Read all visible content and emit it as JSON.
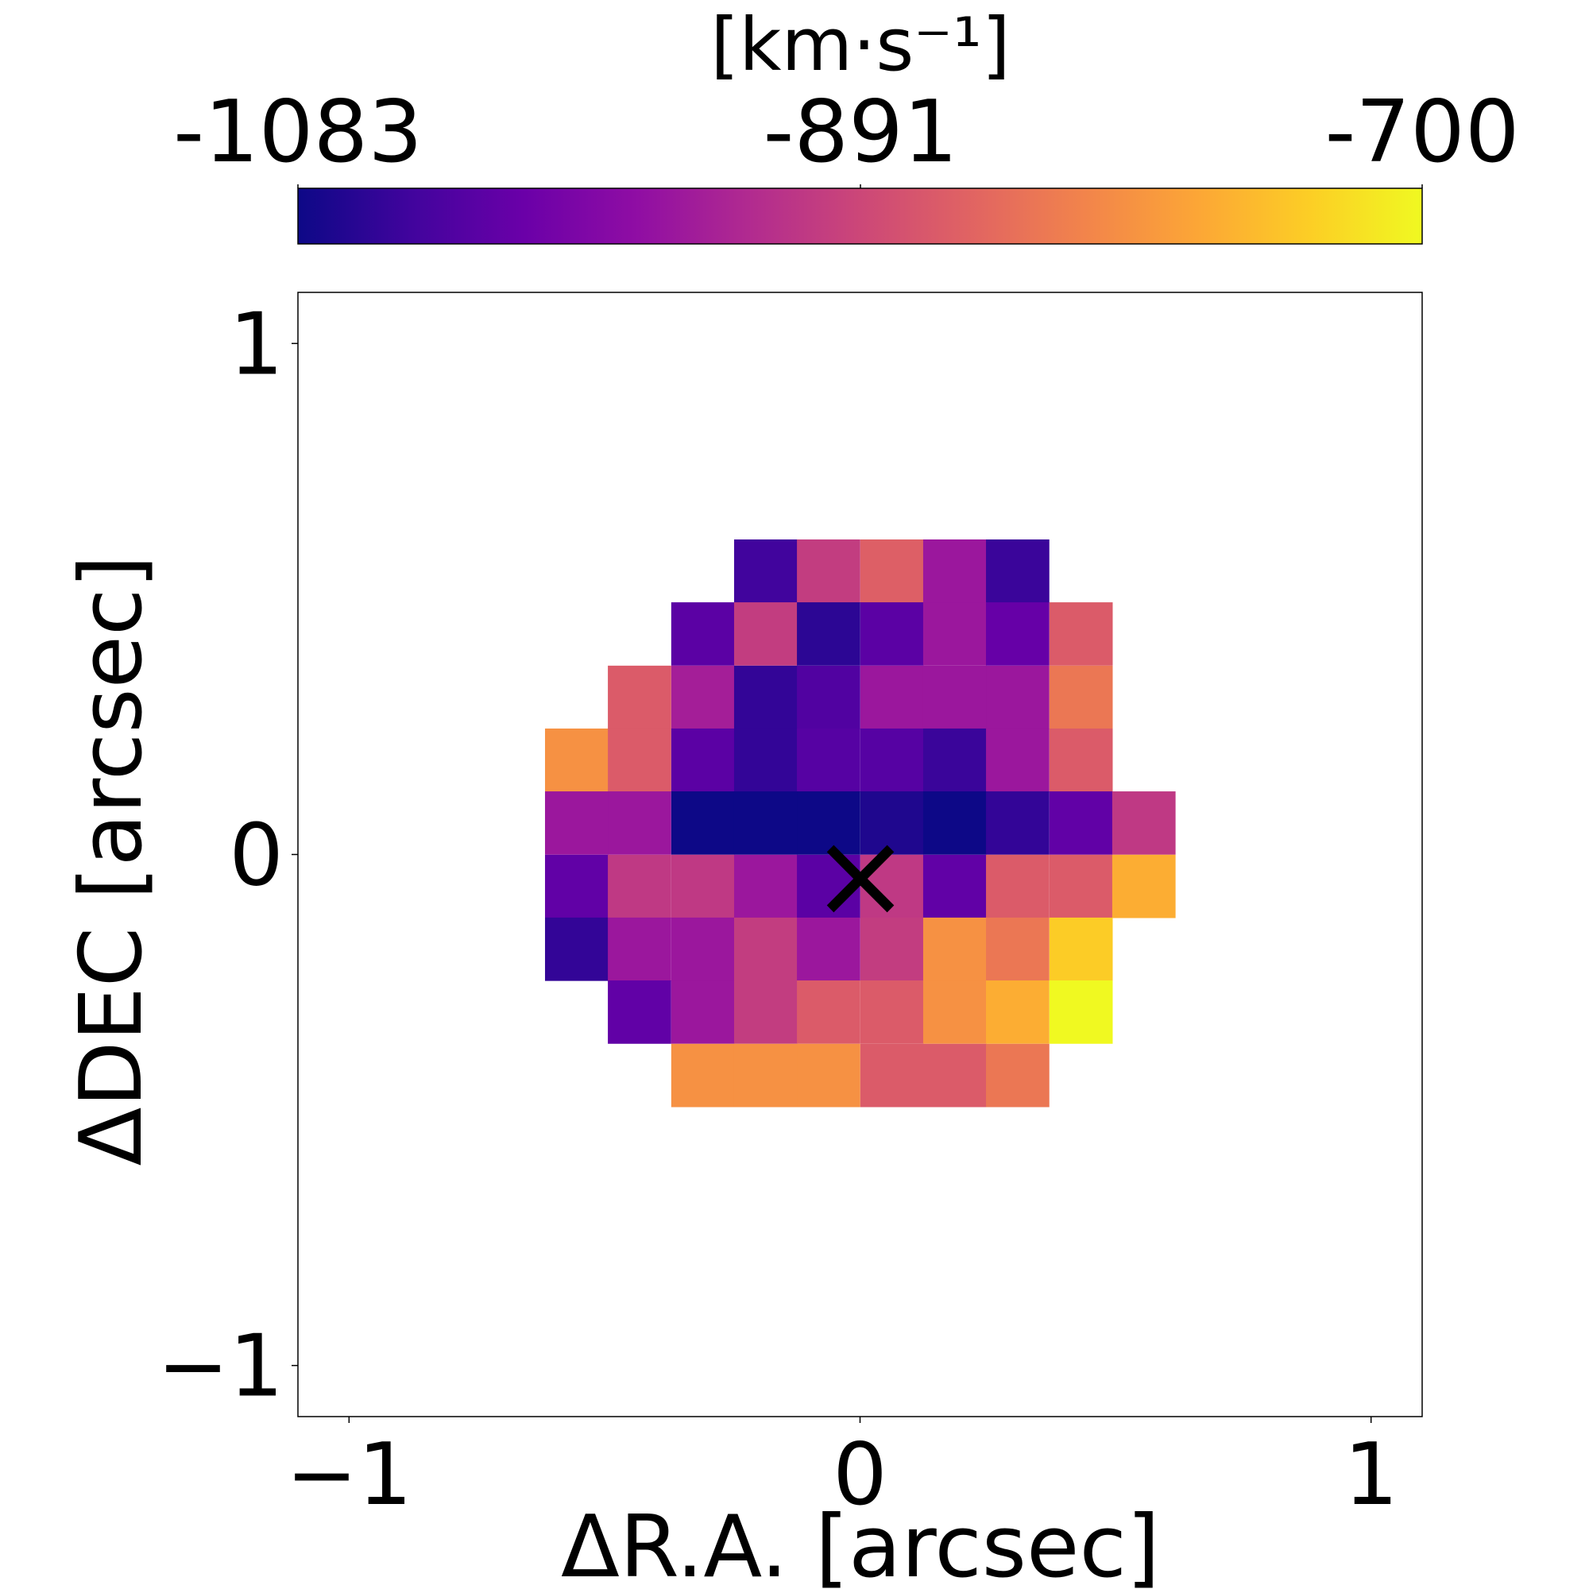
{
  "chart_data": {
    "type": "heatmap",
    "title": "",
    "xlabel": "ΔR.A. [arcsec]",
    "ylabel": "ΔDEC [arcsec]",
    "xlim": [
      -1.1,
      1.1
    ],
    "ylim": [
      -1.1,
      1.1
    ],
    "x_ticks": [
      "−1",
      "0",
      "1"
    ],
    "y_ticks": [
      "−1",
      "0",
      "1"
    ],
    "x_tick_values": [
      -1,
      0,
      1
    ],
    "y_tick_values": [
      -1,
      0,
      1
    ],
    "pixel_size_arcsec": 0.123,
    "colormap": "plasma",
    "colorbar": {
      "label": "[km·s⁻¹]",
      "min": -1083,
      "max": -700,
      "tick_labels": [
        "-1083",
        "-891",
        "-700"
      ],
      "tick_values": [
        -1083,
        -891,
        -700
      ],
      "orientation": "horizontal",
      "placement": "top"
    },
    "center_marker": {
      "symbol": "×",
      "x": 0,
      "y": 0
    },
    "cells": [
      {
        "x": -0.185,
        "y": 0.555,
        "v": -1045
      },
      {
        "x": -0.062,
        "y": 0.555,
        "v": -905
      },
      {
        "x": 0.062,
        "y": 0.555,
        "v": -860
      },
      {
        "x": 0.185,
        "y": 0.555,
        "v": -955
      },
      {
        "x": 0.308,
        "y": 0.555,
        "v": -1050
      },
      {
        "x": -0.308,
        "y": 0.432,
        "v": -1020
      },
      {
        "x": -0.185,
        "y": 0.432,
        "v": -905
      },
      {
        "x": -0.062,
        "y": 0.432,
        "v": -1060
      },
      {
        "x": 0.062,
        "y": 0.432,
        "v": -1020
      },
      {
        "x": 0.185,
        "y": 0.432,
        "v": -955
      },
      {
        "x": 0.308,
        "y": 0.432,
        "v": -1010
      },
      {
        "x": 0.432,
        "y": 0.432,
        "v": -865
      },
      {
        "x": -0.432,
        "y": 0.308,
        "v": -865
      },
      {
        "x": -0.308,
        "y": 0.308,
        "v": -945
      },
      {
        "x": -0.185,
        "y": 0.308,
        "v": -1055
      },
      {
        "x": -0.062,
        "y": 0.308,
        "v": -1030
      },
      {
        "x": 0.062,
        "y": 0.308,
        "v": -955
      },
      {
        "x": 0.185,
        "y": 0.308,
        "v": -955
      },
      {
        "x": 0.308,
        "y": 0.308,
        "v": -955
      },
      {
        "x": 0.432,
        "y": 0.308,
        "v": -830
      },
      {
        "x": -0.555,
        "y": 0.185,
        "v": -800
      },
      {
        "x": -0.432,
        "y": 0.185,
        "v": -865
      },
      {
        "x": -0.308,
        "y": 0.185,
        "v": -1020
      },
      {
        "x": -0.185,
        "y": 0.185,
        "v": -1055
      },
      {
        "x": -0.062,
        "y": 0.185,
        "v": -1025
      },
      {
        "x": 0.062,
        "y": 0.185,
        "v": -1025
      },
      {
        "x": 0.185,
        "y": 0.185,
        "v": -1050
      },
      {
        "x": 0.308,
        "y": 0.185,
        "v": -955
      },
      {
        "x": 0.432,
        "y": 0.185,
        "v": -865
      },
      {
        "x": -0.555,
        "y": 0.062,
        "v": -955
      },
      {
        "x": -0.432,
        "y": 0.062,
        "v": -955
      },
      {
        "x": -0.308,
        "y": 0.062,
        "v": -1083
      },
      {
        "x": -0.185,
        "y": 0.062,
        "v": -1083
      },
      {
        "x": -0.062,
        "y": 0.062,
        "v": -1083
      },
      {
        "x": 0.062,
        "y": 0.062,
        "v": -1070
      },
      {
        "x": 0.185,
        "y": 0.062,
        "v": -1083
      },
      {
        "x": 0.308,
        "y": 0.062,
        "v": -1055
      },
      {
        "x": 0.432,
        "y": 0.062,
        "v": -1015
      },
      {
        "x": 0.555,
        "y": 0.062,
        "v": -910
      },
      {
        "x": -0.555,
        "y": -0.062,
        "v": -1015
      },
      {
        "x": -0.432,
        "y": -0.062,
        "v": -910
      },
      {
        "x": -0.308,
        "y": -0.062,
        "v": -910
      },
      {
        "x": -0.185,
        "y": -0.062,
        "v": -955
      },
      {
        "x": -0.062,
        "y": -0.062,
        "v": -1020
      },
      {
        "x": 0.062,
        "y": -0.062,
        "v": -910
      },
      {
        "x": 0.185,
        "y": -0.062,
        "v": -1015
      },
      {
        "x": 0.308,
        "y": -0.062,
        "v": -865
      },
      {
        "x": 0.432,
        "y": -0.062,
        "v": -865
      },
      {
        "x": 0.555,
        "y": -0.062,
        "v": -770
      },
      {
        "x": -0.555,
        "y": -0.185,
        "v": -1055
      },
      {
        "x": -0.432,
        "y": -0.185,
        "v": -955
      },
      {
        "x": -0.308,
        "y": -0.185,
        "v": -955
      },
      {
        "x": -0.185,
        "y": -0.185,
        "v": -905
      },
      {
        "x": -0.062,
        "y": -0.185,
        "v": -955
      },
      {
        "x": 0.062,
        "y": -0.185,
        "v": -905
      },
      {
        "x": 0.185,
        "y": -0.185,
        "v": -800
      },
      {
        "x": 0.308,
        "y": -0.185,
        "v": -830
      },
      {
        "x": 0.432,
        "y": -0.185,
        "v": -740
      },
      {
        "x": -0.432,
        "y": -0.308,
        "v": -1015
      },
      {
        "x": -0.308,
        "y": -0.308,
        "v": -955
      },
      {
        "x": -0.185,
        "y": -0.308,
        "v": -905
      },
      {
        "x": -0.062,
        "y": -0.308,
        "v": -865
      },
      {
        "x": 0.062,
        "y": -0.308,
        "v": -865
      },
      {
        "x": 0.185,
        "y": -0.308,
        "v": -800
      },
      {
        "x": 0.308,
        "y": -0.308,
        "v": -770
      },
      {
        "x": 0.432,
        "y": -0.308,
        "v": -700
      },
      {
        "x": -0.308,
        "y": -0.432,
        "v": -800
      },
      {
        "x": -0.185,
        "y": -0.432,
        "v": -800
      },
      {
        "x": -0.062,
        "y": -0.432,
        "v": -800
      },
      {
        "x": 0.062,
        "y": -0.432,
        "v": -865
      },
      {
        "x": 0.185,
        "y": -0.432,
        "v": -865
      },
      {
        "x": 0.308,
        "y": -0.432,
        "v": -830
      }
    ]
  }
}
